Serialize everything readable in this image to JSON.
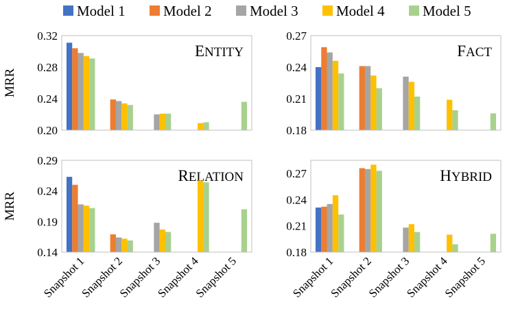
{
  "chart_data": [
    {
      "type": "bar",
      "title": "Entity",
      "categories": [
        "Snapshot 1",
        "Snapshot 2",
        "Snapshot 3",
        "Snapshot 4",
        "Snapshot 5"
      ],
      "ylabel": "MRR",
      "ylim": [
        0.2,
        0.32
      ],
      "yticks": [
        0.2,
        0.24,
        0.28,
        0.32
      ],
      "tick_labels": [
        "0.20",
        "0.24",
        "0.28",
        "0.32"
      ],
      "series": [
        {
          "name": "Model 1",
          "values": [
            0.311,
            null,
            null,
            null,
            null
          ]
        },
        {
          "name": "Model 2",
          "values": [
            0.304,
            0.239,
            null,
            null,
            null
          ]
        },
        {
          "name": "Model 3",
          "values": [
            0.298,
            0.237,
            0.22,
            null,
            null
          ]
        },
        {
          "name": "Model 4",
          "values": [
            0.294,
            0.234,
            0.221,
            0.209,
            null
          ]
        },
        {
          "name": "Model 5",
          "values": [
            0.291,
            0.232,
            0.221,
            0.21,
            0.236
          ]
        }
      ]
    },
    {
      "type": "bar",
      "title": "Fact",
      "categories": [
        "Snapshot 1",
        "Snapshot 2",
        "Snapshot 3",
        "Snapshot 4",
        "Snapshot 5"
      ],
      "ylabel": "",
      "ylim": [
        0.18,
        0.27
      ],
      "yticks": [
        0.18,
        0.21,
        0.24,
        0.27
      ],
      "tick_labels": [
        "0.18",
        "0.21",
        "0.24",
        "0.27"
      ],
      "series": [
        {
          "name": "Model 1",
          "values": [
            0.24,
            null,
            null,
            null,
            null
          ]
        },
        {
          "name": "Model 2",
          "values": [
            0.259,
            0.241,
            null,
            null,
            null
          ]
        },
        {
          "name": "Model 3",
          "values": [
            0.254,
            0.241,
            0.231,
            null,
            null
          ]
        },
        {
          "name": "Model 4",
          "values": [
            0.246,
            0.232,
            0.226,
            0.209,
            null
          ]
        },
        {
          "name": "Model 5",
          "values": [
            0.234,
            0.22,
            0.212,
            0.199,
            0.196
          ]
        }
      ]
    },
    {
      "type": "bar",
      "title": "Relation",
      "categories": [
        "Snapshot 1",
        "Snapshot 2",
        "Snapshot 3",
        "Snapshot 4",
        "Snapshot 5"
      ],
      "ylabel": "MRR",
      "ylim": [
        0.14,
        0.29
      ],
      "yticks": [
        0.14,
        0.19,
        0.24,
        0.29
      ],
      "tick_labels": [
        "0.14",
        "0.19",
        "0.24",
        "0.29"
      ],
      "series": [
        {
          "name": "Model 1",
          "values": [
            0.263,
            null,
            null,
            null,
            null
          ]
        },
        {
          "name": "Model 2",
          "values": [
            0.25,
            0.169,
            null,
            null,
            null
          ]
        },
        {
          "name": "Model 3",
          "values": [
            0.218,
            0.164,
            0.188,
            null,
            null
          ]
        },
        {
          "name": "Model 4",
          "values": [
            0.216,
            0.162,
            0.177,
            0.257,
            null
          ]
        },
        {
          "name": "Model 5",
          "values": [
            0.212,
            0.159,
            0.173,
            0.254,
            0.21
          ]
        }
      ]
    },
    {
      "type": "bar",
      "title": "Hybrid",
      "categories": [
        "Snapshot 1",
        "Snapshot 2",
        "Snapshot 3",
        "Snapshot 4",
        "Snapshot 5"
      ],
      "ylabel": "",
      "ylim": [
        0.18,
        0.285
      ],
      "yticks": [
        0.18,
        0.21,
        0.24,
        0.27
      ],
      "tick_labels": [
        "0.18",
        "0.21",
        "0.24",
        "0.27"
      ],
      "series": [
        {
          "name": "Model 1",
          "values": [
            0.231,
            null,
            null,
            null,
            null
          ]
        },
        {
          "name": "Model 2",
          "values": [
            0.232,
            0.276,
            null,
            null,
            null
          ]
        },
        {
          "name": "Model 3",
          "values": [
            0.235,
            0.275,
            0.208,
            null,
            null
          ]
        },
        {
          "name": "Model 4",
          "values": [
            0.245,
            0.28,
            0.212,
            0.2,
            null
          ]
        },
        {
          "name": "Model 5",
          "values": [
            0.223,
            0.273,
            0.203,
            0.189,
            0.201
          ]
        }
      ]
    }
  ],
  "legend": {
    "entries": [
      "Model 1",
      "Model 2",
      "Model 3",
      "Model 4",
      "Model 5"
    ],
    "placement": "top-center"
  },
  "colors": [
    "#4472c4",
    "#ed7d31",
    "#a5a5a5",
    "#ffc000",
    "#a9d18e"
  ]
}
